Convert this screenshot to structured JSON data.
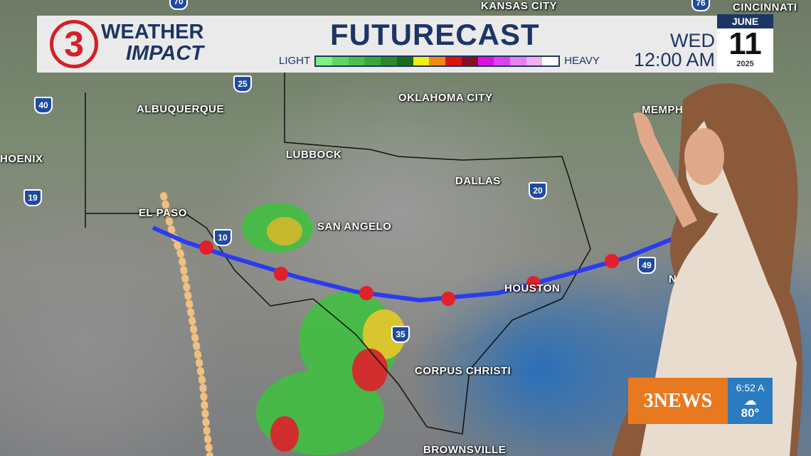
{
  "header": {
    "logo_number": "3",
    "brand_line1": "WEATHER",
    "brand_line2": "IMPACT",
    "title": "FUTURECAST",
    "scale_low": "LIGHT",
    "scale_high": "HEAVY",
    "scale_colors": [
      "#7ef07e",
      "#5fd65f",
      "#4cc04c",
      "#3aa83a",
      "#2b8a2b",
      "#1c6a1c",
      "#f0f010",
      "#f08a10",
      "#e01010",
      "#8a1020",
      "#e010e0",
      "#e040f0",
      "#e880f0",
      "#f0b0f0",
      "#ffffff"
    ],
    "day": "WED",
    "time": "12:00 AM",
    "month": "JUNE",
    "date": "11",
    "year": "2025"
  },
  "map": {
    "cities": [
      "KANSAS CITY",
      "CINCINNATI",
      "OKLAHOMA CITY",
      "MEMPH",
      "ALBUQUERQUE",
      "HOENIX",
      "LUBBOCK",
      "DALLAS",
      "EL PASO",
      "SAN ANGELO",
      "HOUSTON",
      "NEW",
      "CORPUS CHRISTI",
      "BROWNSVILLE"
    ],
    "interstates": [
      "40",
      "25",
      "19",
      "10",
      "20",
      "35",
      "49",
      "70",
      "76"
    ],
    "front_colors": {
      "cold": "#2a3cf0",
      "warm": "#e0202a",
      "dryline": "#f0c080"
    }
  },
  "bug": {
    "brand": "3NEWS",
    "time": "6:52 A",
    "temp": "80°",
    "condition_icon": "cloud-icon",
    "brand_color": "#e8791e",
    "weather_color": "#2a7bc0"
  }
}
